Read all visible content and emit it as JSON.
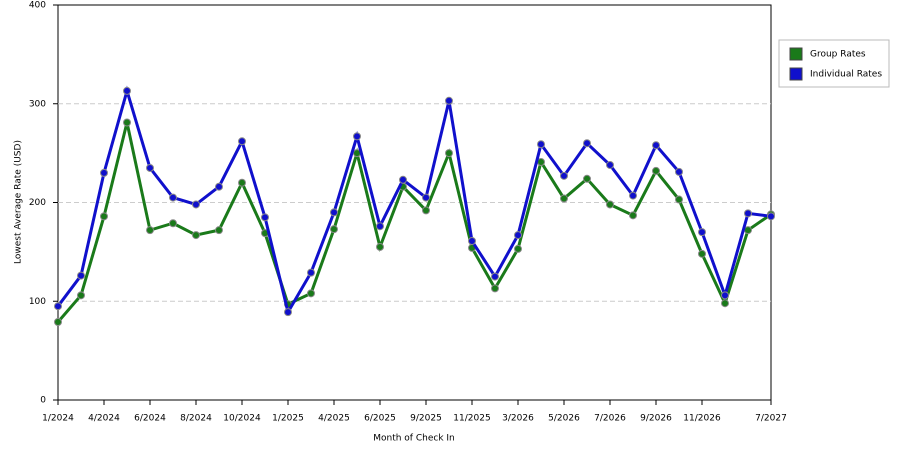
{
  "chart_data": {
    "type": "line",
    "x_label": "Month of Check In",
    "y_label": "Lowest Average Rate (USD)",
    "categories": [
      "1/2024",
      null,
      "4/2024",
      null,
      "6/2024",
      null,
      "8/2024",
      null,
      "10/2024",
      null,
      "1/2025",
      null,
      "4/2025",
      null,
      "6/2025",
      null,
      "9/2025",
      null,
      "11/2025",
      null,
      "3/2026",
      null,
      "5/2026",
      null,
      "7/2026",
      null,
      "9/2026",
      null,
      "11/2026",
      null,
      null,
      "7/2027"
    ],
    "series": [
      {
        "name": "Group Rates",
        "color": "#1a7a1a",
        "values": [
          79,
          106,
          186,
          281,
          172,
          179,
          167,
          172,
          220,
          169,
          97,
          108,
          173,
          250,
          155,
          216,
          192,
          250,
          154,
          113,
          153,
          241,
          204,
          224,
          198,
          187,
          232,
          203,
          148,
          98,
          172,
          188
        ]
      },
      {
        "name": "Individual Rates",
        "color": "#1010cc",
        "values": [
          95,
          126,
          230,
          313,
          235,
          205,
          198,
          216,
          262,
          185,
          89,
          129,
          190,
          267,
          176,
          223,
          205,
          303,
          161,
          125,
          167,
          259,
          227,
          260,
          238,
          207,
          258,
          231,
          170,
          106,
          189,
          186
        ]
      }
    ],
    "ylim": [
      0,
      400
    ],
    "yticks": [
      0,
      100,
      200,
      300,
      400
    ],
    "grid": true,
    "legend": "right"
  }
}
